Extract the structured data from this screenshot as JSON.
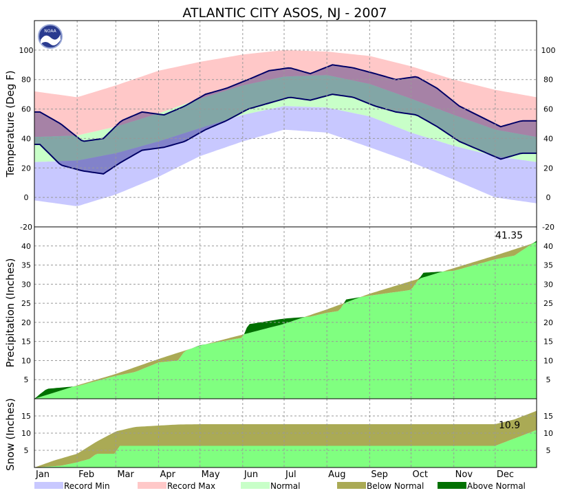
{
  "chart_data": {
    "title": "ATLANTIC CITY  ASOS, NJ - 2007",
    "logo_text": "NOAA",
    "x": {
      "type": "date",
      "range": [
        "2007-01-01",
        "2007-12-31"
      ],
      "months": [
        "Jan",
        "Feb",
        "Mar",
        "Apr",
        "May",
        "Jun",
        "Jul",
        "Aug",
        "Sep",
        "Oct",
        "Nov",
        "Dec"
      ]
    },
    "grid": true,
    "legend": {
      "placement": "bottom",
      "items": [
        {
          "label": "Record Min",
          "color": "#c8c8ff"
        },
        {
          "label": "Record Max",
          "color": "#ffc8c8"
        },
        {
          "label": "Normal",
          "color": "#c8ffc8"
        },
        {
          "label": "Below Normal",
          "color": "#aaaa55"
        },
        {
          "label": "Above Normal",
          "color": "#007000"
        }
      ]
    },
    "panels": [
      {
        "id": "temperature",
        "type": "area",
        "ylabel": "Temperature (Deg F)",
        "ylim": [
          -20,
          120
        ],
        "yticks": [
          -20,
          0,
          20,
          40,
          60,
          80,
          100
        ],
        "colors": {
          "record_min": "#c8c8ff",
          "record_max": "#ffc8c8",
          "normal": "#c8ffc8",
          "actual": "#000066"
        },
        "series": [
          {
            "name": "Record Max",
            "x": [
              "Jan 1",
              "Feb 1",
              "Mar 1",
              "Apr 1",
              "May 1",
              "Jun 1",
              "Jul 1",
              "Aug 1",
              "Sep 1",
              "Oct 1",
              "Nov 1",
              "Dec 1",
              "Dec 31"
            ],
            "values": [
              72,
              68,
              76,
              86,
              92,
              97,
              100,
              99,
              96,
              89,
              80,
              73,
              68
            ]
          },
          {
            "name": "Normal High",
            "x": [
              "Jan 1",
              "Feb 1",
              "Mar 1",
              "Apr 1",
              "May 1",
              "Jun 1",
              "Jul 1",
              "Aug 1",
              "Sep 1",
              "Oct 1",
              "Nov 1",
              "Dec 1",
              "Dec 31"
            ],
            "values": [
              41,
              42,
              48,
              57,
              67,
              76,
              82,
              83,
              77,
              67,
              56,
              46,
              41
            ]
          },
          {
            "name": "Normal Low",
            "x": [
              "Jan 1",
              "Feb 1",
              "Mar 1",
              "Apr 1",
              "May 1",
              "Jun 1",
              "Jul 1",
              "Aug 1",
              "Sep 1",
              "Oct 1",
              "Nov 1",
              "Dec 1",
              "Dec 31"
            ],
            "values": [
              24,
              25,
              30,
              38,
              47,
              56,
              62,
              61,
              55,
              44,
              35,
              28,
              24
            ]
          },
          {
            "name": "Record Min",
            "x": [
              "Jan 1",
              "Feb 1",
              "Mar 1",
              "Apr 1",
              "May 1",
              "Jun 1",
              "Jul 1",
              "Aug 1",
              "Sep 1",
              "Oct 1",
              "Nov 1",
              "Dec 1",
              "Dec 31"
            ],
            "values": [
              -2,
              -6,
              2,
              14,
              28,
              38,
              46,
              44,
              34,
              24,
              12,
              0,
              -4
            ]
          },
          {
            "name": "Observed High",
            "x": [
              "Jan 5",
              "Jan 20",
              "Feb 5",
              "Feb 20",
              "Mar 5",
              "Mar 20",
              "Apr 5",
              "Apr 20",
              "May 5",
              "May 20",
              "Jun 5",
              "Jun 20",
              "Jul 5",
              "Jul 20",
              "Aug 5",
              "Aug 20",
              "Sep 5",
              "Sep 20",
              "Oct 5",
              "Oct 20",
              "Nov 5",
              "Nov 20",
              "Dec 5",
              "Dec 20"
            ],
            "values": [
              58,
              50,
              38,
              40,
              52,
              58,
              56,
              62,
              70,
              74,
              80,
              86,
              88,
              84,
              90,
              88,
              84,
              80,
              82,
              74,
              62,
              55,
              48,
              52
            ]
          },
          {
            "name": "Observed Low",
            "x": [
              "Jan 5",
              "Jan 20",
              "Feb 5",
              "Feb 20",
              "Mar 5",
              "Mar 20",
              "Apr 5",
              "Apr 20",
              "May 5",
              "May 20",
              "Jun 5",
              "Jun 20",
              "Jul 5",
              "Jul 20",
              "Aug 5",
              "Aug 20",
              "Sep 5",
              "Sep 20",
              "Oct 5",
              "Oct 20",
              "Nov 5",
              "Nov 20",
              "Dec 5",
              "Dec 20"
            ],
            "values": [
              36,
              22,
              18,
              16,
              24,
              32,
              34,
              38,
              46,
              52,
              60,
              64,
              68,
              66,
              70,
              68,
              62,
              58,
              56,
              48,
              38,
              32,
              26,
              30
            ]
          }
        ]
      },
      {
        "id": "precipitation",
        "type": "area",
        "ylabel": "Precipitation (Inches)",
        "ylim": [
          0,
          45
        ],
        "yticks": [
          5,
          10,
          15,
          20,
          25,
          30,
          35,
          40
        ],
        "annotation": "41.35",
        "series": [
          {
            "name": "Normal",
            "x": [
              "Jan 1",
              "Feb 1",
              "Mar 1",
              "Apr 1",
              "May 1",
              "Jun 1",
              "Jul 1",
              "Aug 1",
              "Sep 1",
              "Oct 1",
              "Nov 1",
              "Dec 1",
              "Dec 31"
            ],
            "values": [
              0,
              3.5,
              6.5,
              10.4,
              13.9,
              16.8,
              19.6,
              23.4,
              27.5,
              30.8,
              34.2,
              37.5,
              41.0
            ]
          },
          {
            "name": "Observed",
            "x": [
              "Jan 1",
              "Jan 5",
              "Jan 10",
              "Feb 1",
              "Mar 1",
              "Mar 15",
              "Apr 1",
              "Apr 15",
              "Apr 20",
              "May 1",
              "Jun 1",
              "Jun 5",
              "Jul 1",
              "Jul 20",
              "Aug 1",
              "Aug 10",
              "Aug 15",
              "Sep 1",
              "Oct 1",
              "Oct 10",
              "Nov 1",
              "Dec 1",
              "Dec 15",
              "Dec 31"
            ],
            "values": [
              0,
              1.2,
              2.6,
              3.3,
              6.0,
              7.0,
              9.5,
              10.0,
              12.5,
              14.0,
              16.0,
              19.5,
              21.0,
              21.5,
              22.5,
              23.0,
              26.0,
              27.0,
              28.5,
              33.0,
              33.5,
              36.5,
              37.5,
              41.35
            ]
          }
        ]
      },
      {
        "id": "snow",
        "type": "area",
        "ylabel": "Snow (Inches)",
        "ylim": [
          0,
          20
        ],
        "yticks": [
          5,
          10,
          15
        ],
        "annotation": "10.9",
        "series": [
          {
            "name": "Normal",
            "x": [
              "Jan 1",
              "Jan 15",
              "Feb 1",
              "Feb 15",
              "Mar 1",
              "Mar 15",
              "Apr 1",
              "Apr 15",
              "May 1",
              "Dec 1",
              "Dec 15",
              "Dec 31"
            ],
            "values": [
              0,
              2,
              4,
              7.5,
              10.5,
              11.8,
              12.2,
              12.5,
              12.6,
              12.6,
              14,
              16.5
            ]
          },
          {
            "name": "Observed",
            "x": [
              "Jan 1",
              "Jan 20",
              "Feb 1",
              "Feb 10",
              "Feb 15",
              "Mar 1",
              "Mar 3",
              "Dec 1",
              "Dec 31"
            ],
            "values": [
              0,
              0.5,
              1.5,
              2.5,
              4.0,
              4.0,
              6.3,
              6.3,
              10.9
            ]
          }
        ]
      }
    ]
  }
}
